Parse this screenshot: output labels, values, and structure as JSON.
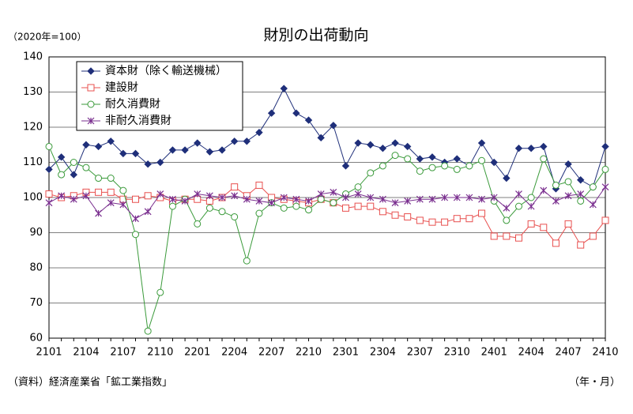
{
  "chart_data": {
    "type": "line",
    "title": "財別の出荷動向",
    "y_axis_label": "（2020年=100）",
    "x_axis_label": "（年・月）",
    "source": "（資料）経済産業省「鉱工業指数」",
    "categories": [
      "2101",
      null,
      null,
      "2104",
      null,
      null,
      "2107",
      null,
      null,
      "2110",
      null,
      null,
      "2201",
      null,
      null,
      "2204",
      null,
      null,
      "2207",
      null,
      null,
      "2210",
      null,
      null,
      "2301",
      null,
      null,
      "2304",
      null,
      null,
      "2307",
      null,
      null,
      "2310",
      null,
      null,
      "2401",
      null,
      null,
      "2404",
      null,
      null,
      "2407",
      null,
      null,
      "2410"
    ],
    "ylim": [
      60,
      140
    ],
    "yticks": [
      60,
      70,
      80,
      90,
      100,
      110,
      120,
      130,
      140
    ],
    "grid": true,
    "series": [
      {
        "name": "資本財（除く輸送機械）",
        "color": "#1f2f7a",
        "marker": "diamond",
        "values": [
          108,
          111.5,
          106.5,
          115,
          114.5,
          116,
          112.5,
          112.5,
          109.5,
          110,
          113.5,
          113.5,
          115.5,
          113,
          113.5,
          116,
          116,
          118.5,
          124,
          131,
          124,
          122,
          117,
          120.5,
          109,
          115.5,
          115,
          114,
          115.5,
          114.5,
          111,
          111.5,
          110,
          111,
          109,
          115.5,
          110,
          105.5,
          114,
          114,
          114.5,
          102.5,
          109.5,
          105,
          103,
          114.5
        ]
      },
      {
        "name": "建設財",
        "color": "#e8504f",
        "marker": "square",
        "values": [
          101,
          100,
          100.5,
          101.5,
          101.5,
          101.5,
          99.5,
          99.5,
          100.5,
          100,
          99,
          99.5,
          99.5,
          99,
          100,
          103,
          100.5,
          103.5,
          100,
          99.5,
          99,
          98.5,
          99.5,
          98.5,
          97,
          97.5,
          97.5,
          96,
          95,
          94.5,
          93.5,
          93,
          93,
          94,
          94,
          95.5,
          89,
          89,
          88.5,
          92.5,
          91.5,
          87,
          92.5,
          86.5,
          89,
          93.5
        ]
      },
      {
        "name": "耐久消費財",
        "color": "#3a9a3a",
        "marker": "circle",
        "values": [
          114.5,
          106.5,
          110,
          108.5,
          105.5,
          105.5,
          102,
          89.5,
          62,
          73,
          97.5,
          99.5,
          92.5,
          97,
          96,
          94.5,
          82,
          95.5,
          98.5,
          97,
          97.5,
          96.5,
          99.5,
          98.5,
          101,
          103,
          107,
          109,
          112,
          111,
          107.5,
          108.5,
          109,
          108,
          109,
          110.5,
          99,
          93.5,
          97.5,
          100,
          111,
          103.5,
          104.5,
          99,
          103,
          108
        ]
      },
      {
        "name": "非耐久消費財",
        "color": "#7a2f8f",
        "marker": "star",
        "values": [
          98.5,
          100.5,
          99.5,
          100.5,
          95.5,
          98.5,
          98,
          94,
          96,
          101,
          99.5,
          99,
          101,
          100.5,
          100,
          100.5,
          99.5,
          99,
          98.5,
          100,
          99.5,
          99,
          101,
          101.5,
          100,
          101,
          100,
          99.5,
          98.5,
          99,
          99.5,
          99.5,
          100,
          100,
          100,
          99.5,
          100,
          97,
          101,
          97.5,
          102,
          99,
          100.5,
          101,
          98,
          103
        ]
      }
    ]
  }
}
